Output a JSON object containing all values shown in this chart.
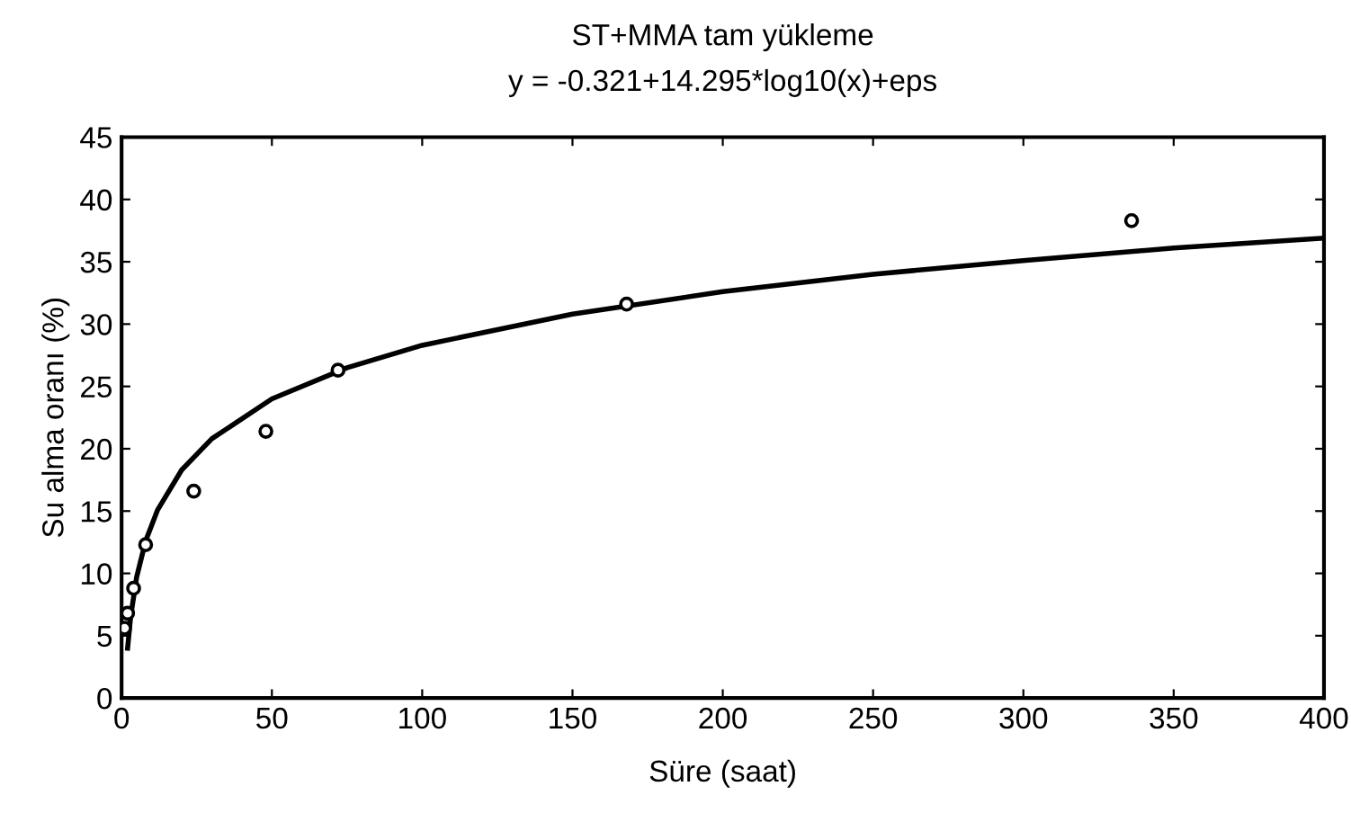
{
  "chart_data": {
    "type": "scatter",
    "title": "ST+MMA tam yükleme",
    "subtitle": "y = -0.321+14.295*log10(x)+eps",
    "xlabel": "Süre (saat)",
    "ylabel": "Su alma oranı (%)",
    "xlim": [
      0,
      400
    ],
    "xticks": [
      0,
      50,
      100,
      150,
      200,
      250,
      300,
      350,
      400
    ],
    "ylim": [
      0,
      45
    ],
    "yticks": [
      0,
      5,
      10,
      15,
      20,
      25,
      30,
      35,
      40,
      45
    ],
    "grid": false,
    "legend": false,
    "series": [
      {
        "color": "#000000",
        "marker": "circle",
        "x": [
          1,
          2,
          4,
          8,
          24,
          48,
          72,
          168,
          336
        ],
        "values": [
          5.6,
          6.8,
          8.8,
          12.3,
          16.6,
          21.4,
          26.3,
          31.6,
          38.3
        ]
      },
      {
        "type": "line",
        "color": "#000000",
        "marker": "none",
        "line_style": "solid",
        "x": [
          2,
          3,
          5,
          8,
          12,
          20,
          30,
          50,
          75,
          100,
          150,
          200,
          250,
          300,
          350,
          400
        ],
        "values": [
          4.0,
          6.5,
          9.7,
          12.6,
          15.1,
          18.3,
          20.8,
          24.0,
          26.5,
          28.3,
          30.8,
          32.6,
          34.0,
          35.1,
          36.1,
          36.9
        ]
      }
    ]
  }
}
